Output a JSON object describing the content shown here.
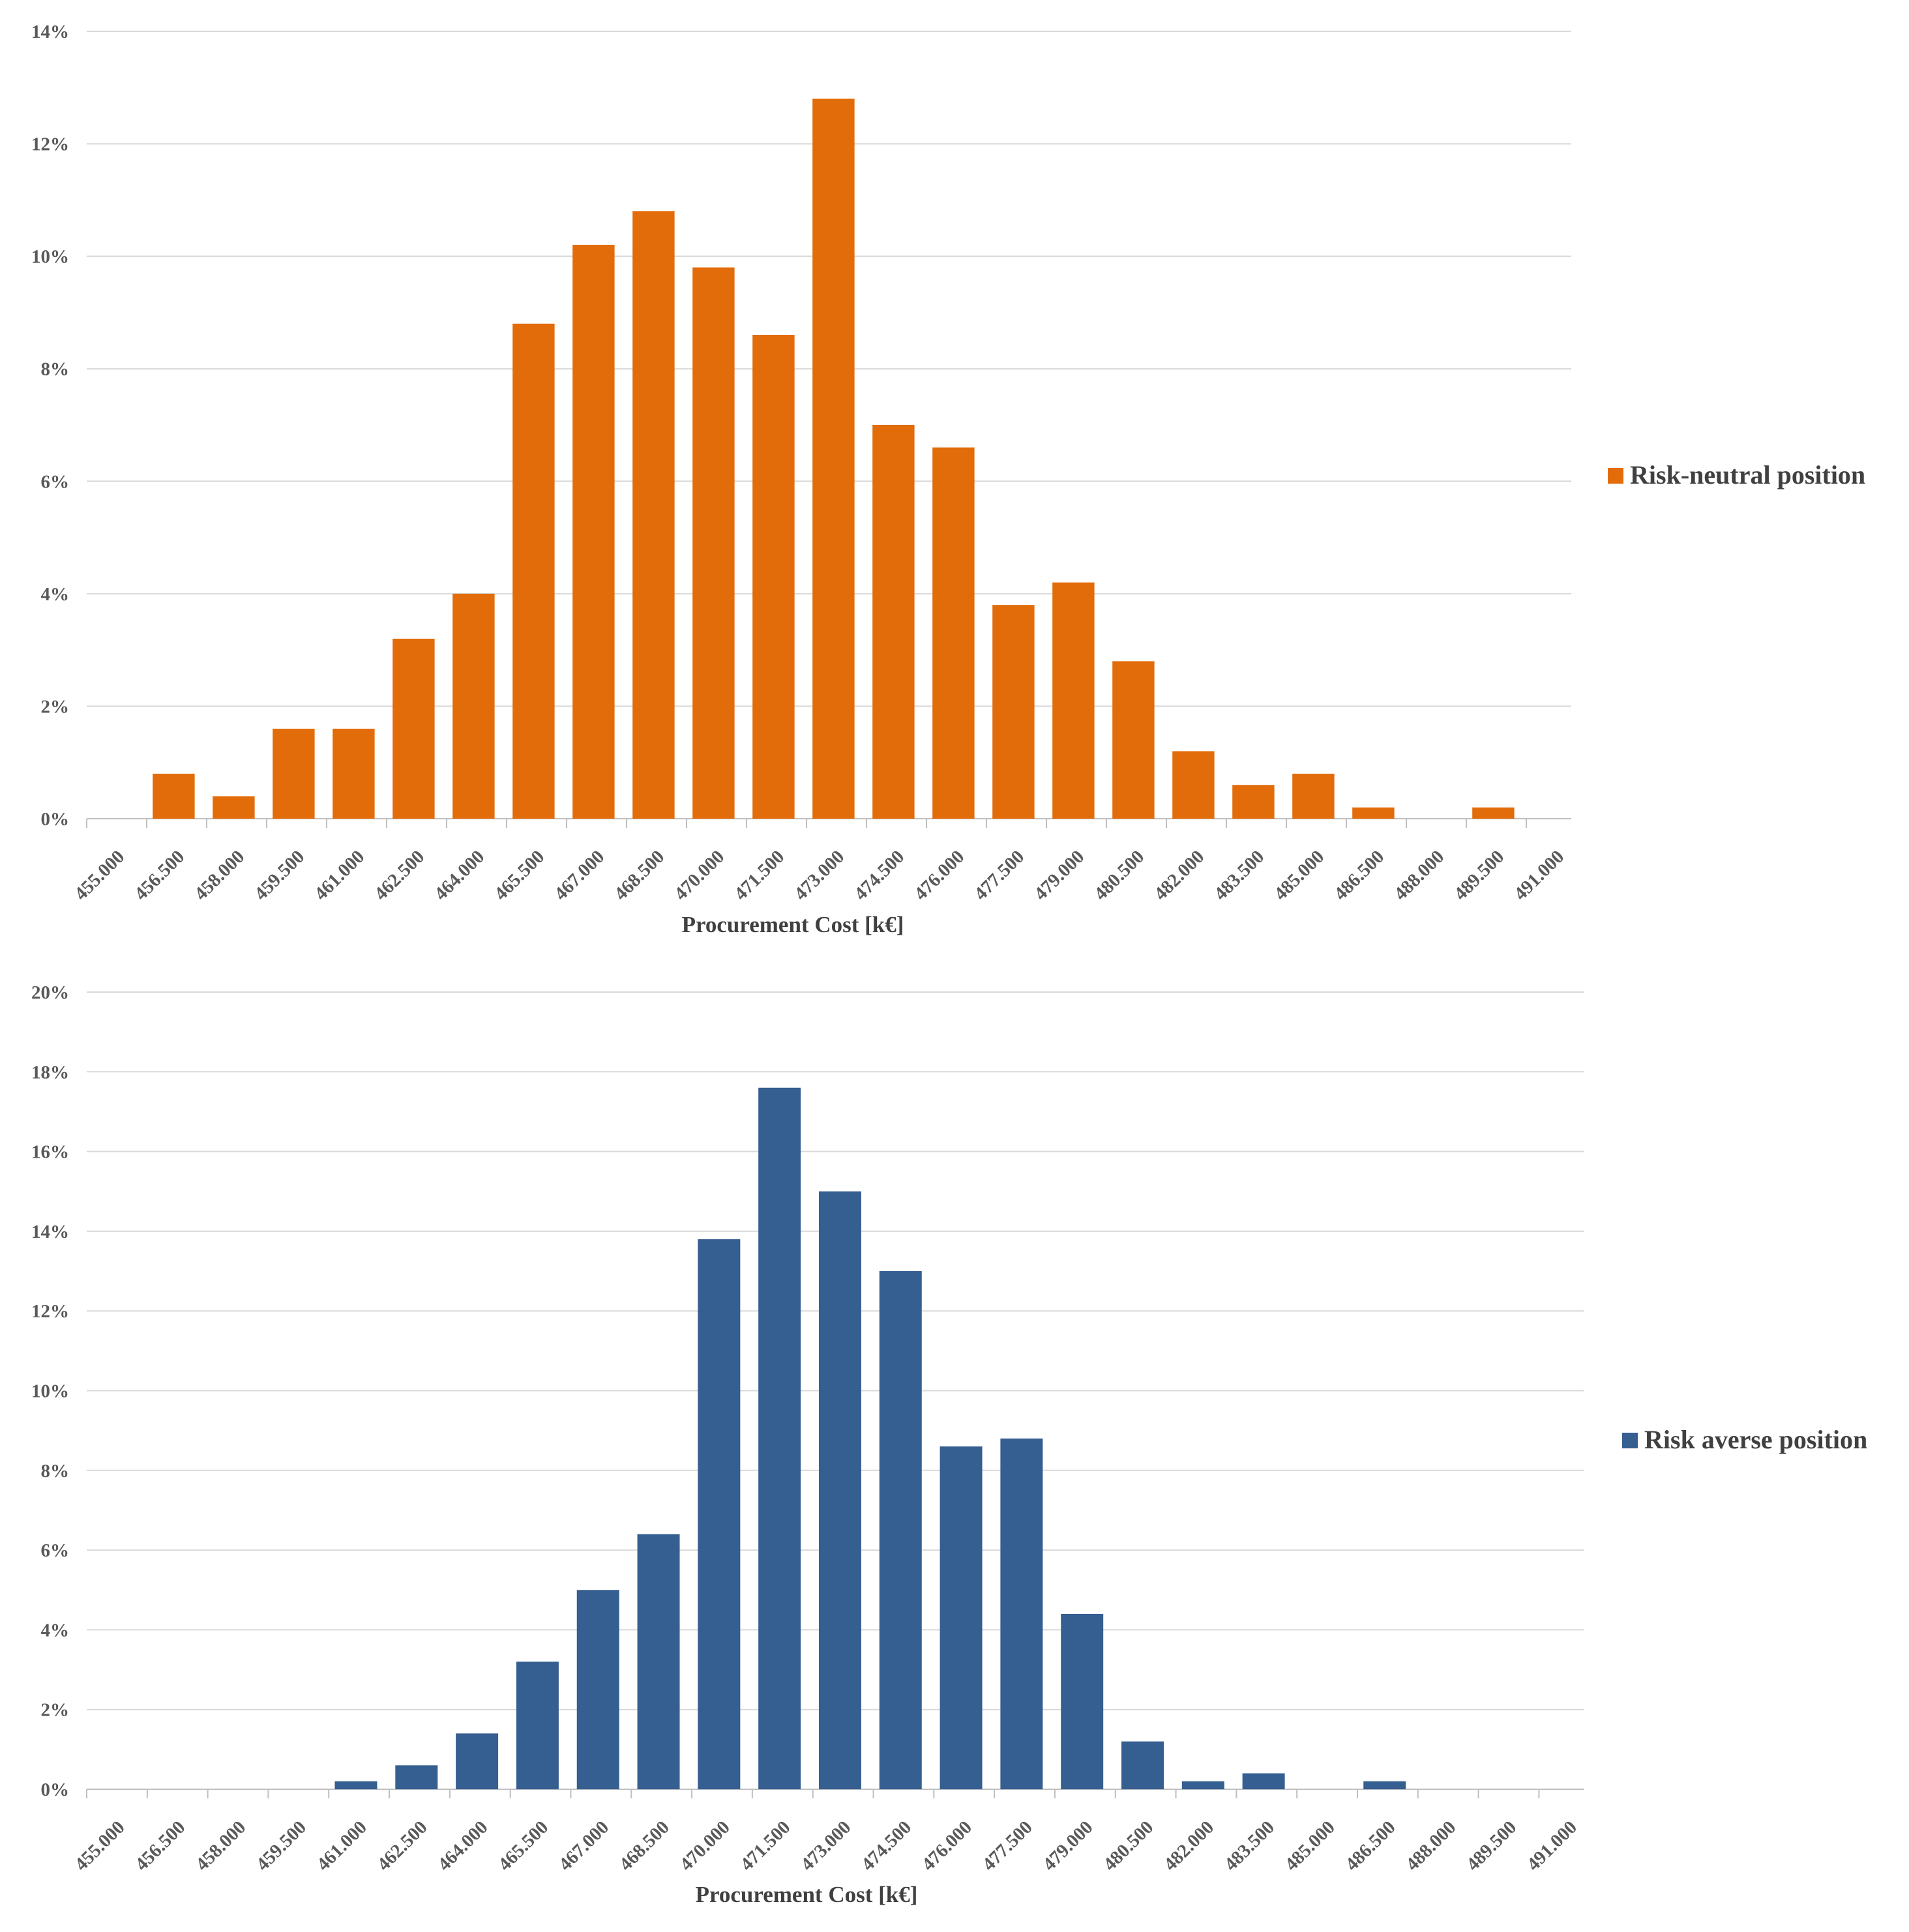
{
  "chart_data": [
    {
      "type": "bar",
      "title": "",
      "xlabel": "Procurement Cost [k€]",
      "ylabel": "",
      "ylim": [
        0,
        14
      ],
      "yticks": [
        "0%",
        "2%",
        "4%",
        "6%",
        "8%",
        "10%",
        "12%",
        "14%"
      ],
      "legend_position": "right",
      "categories": [
        "455.000",
        "456.500",
        "458.000",
        "459.500",
        "461.000",
        "462.500",
        "464.000",
        "465.500",
        "467.000",
        "468.500",
        "470.000",
        "471.500",
        "473.000",
        "474.500",
        "476.000",
        "477.500",
        "479.000",
        "480.500",
        "482.000",
        "483.500",
        "485.000",
        "486.500",
        "488.000",
        "489.500",
        "491.000"
      ],
      "series": [
        {
          "name": "Risk-neutral position",
          "color": "#E36C0A",
          "values": [
            0,
            0.8,
            0.4,
            1.6,
            1.6,
            3.2,
            4.0,
            8.8,
            10.2,
            10.8,
            9.8,
            8.6,
            12.8,
            7.0,
            6.6,
            3.8,
            4.2,
            2.8,
            1.2,
            0.6,
            0.8,
            0.2,
            0,
            0.2,
            0
          ]
        }
      ]
    },
    {
      "type": "bar",
      "title": "",
      "xlabel": "Procurement Cost [k€]",
      "ylabel": "",
      "ylim": [
        0,
        20
      ],
      "yticks": [
        "0%",
        "2%",
        "4%",
        "6%",
        "8%",
        "10%",
        "12%",
        "14%",
        "16%",
        "18%",
        "20%"
      ],
      "legend_position": "right",
      "categories": [
        "455.000",
        "456.500",
        "458.000",
        "459.500",
        "461.000",
        "462.500",
        "464.000",
        "465.500",
        "467.000",
        "468.500",
        "470.000",
        "471.500",
        "473.000",
        "474.500",
        "476.000",
        "477.500",
        "479.000",
        "480.500",
        "482.000",
        "483.500",
        "485.000",
        "486.500",
        "488.000",
        "489.500",
        "491.000"
      ],
      "series": [
        {
          "name": "Risk averse position",
          "color": "#355E91",
          "values": [
            0,
            0,
            0,
            0,
            0.2,
            0.6,
            1.4,
            3.2,
            5.0,
            6.4,
            13.8,
            17.6,
            15.0,
            13.0,
            8.6,
            8.8,
            4.4,
            1.2,
            0.2,
            0.4,
            0,
            0.2,
            0,
            0,
            0
          ]
        }
      ]
    }
  ]
}
